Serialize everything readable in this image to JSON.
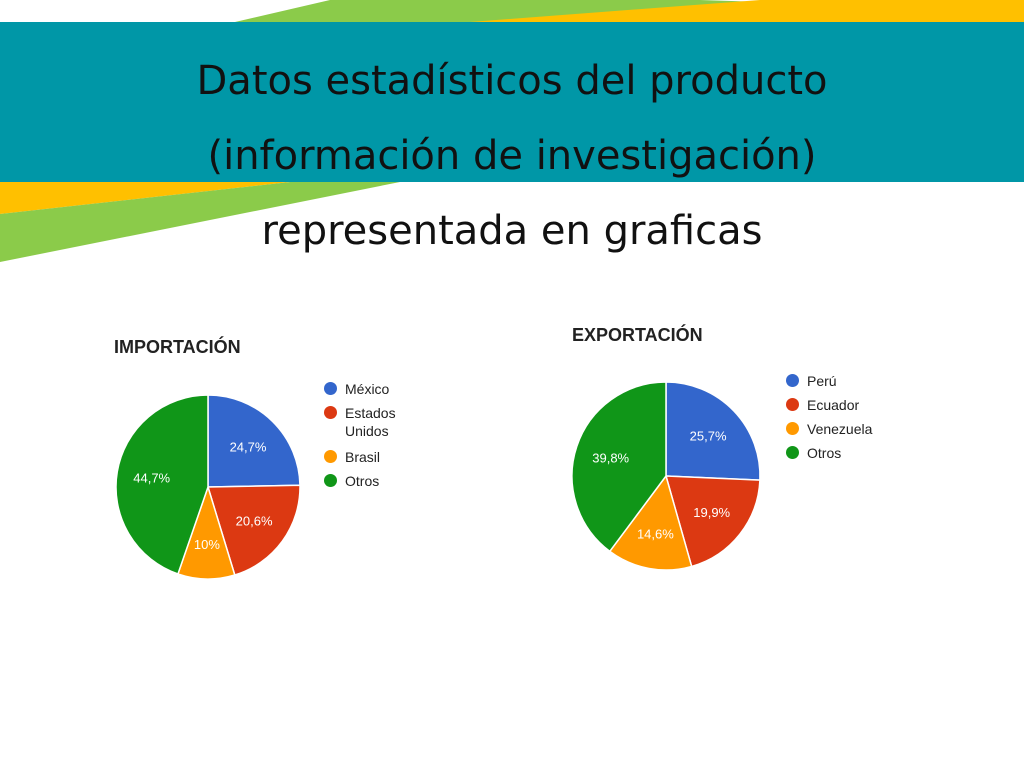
{
  "slide": {
    "title_lines": [
      "Datos estadísticos del producto",
      "(información de investigación)",
      "representada en graficas"
    ]
  },
  "colors": {
    "banner": "#0097A7",
    "stripe_green": "#8BCB4A",
    "stripe_yellow": "#FFC000"
  },
  "chart_data": [
    {
      "type": "pie",
      "title": "IMPORTACIÓN",
      "legend_position": "right",
      "categories": [
        "México",
        "Estados Unidos",
        "Brasil",
        "Otros"
      ],
      "values": [
        24.7,
        20.6,
        10,
        44.7
      ],
      "labels": [
        "24,7%",
        "20,6%",
        "10%",
        "44,7%"
      ],
      "colors": [
        "#3366CC",
        "#DC3912",
        "#FF9900",
        "#109618"
      ]
    },
    {
      "type": "pie",
      "title": "EXPORTACIÓN",
      "legend_position": "right",
      "categories": [
        "Perú",
        "Ecuador",
        "Venezuela",
        "Otros"
      ],
      "values": [
        25.7,
        19.9,
        14.6,
        39.8
      ],
      "labels": [
        "25,7%",
        "19,9%",
        "14,6%",
        "39,8%"
      ],
      "colors": [
        "#3366CC",
        "#DC3912",
        "#FF9900",
        "#109618"
      ]
    }
  ]
}
